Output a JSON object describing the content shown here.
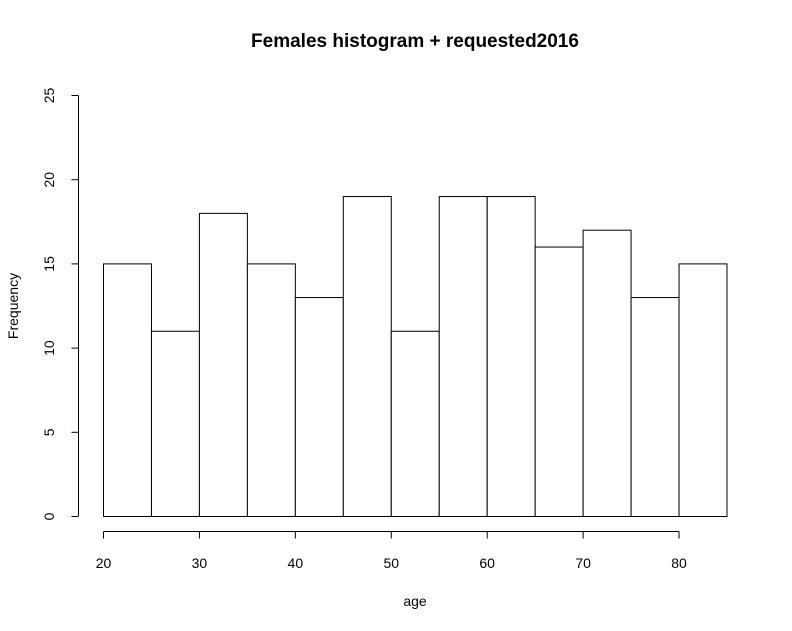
{
  "chart_data": {
    "type": "bar",
    "title": "Females histogram + requested2016",
    "xlabel": "age",
    "ylabel": "Frequency",
    "bins": [
      [
        20,
        25
      ],
      [
        25,
        30
      ],
      [
        30,
        35
      ],
      [
        35,
        40
      ],
      [
        40,
        45
      ],
      [
        45,
        50
      ],
      [
        50,
        55
      ],
      [
        55,
        60
      ],
      [
        60,
        65
      ],
      [
        65,
        70
      ],
      [
        70,
        75
      ],
      [
        75,
        80
      ],
      [
        80,
        85
      ]
    ],
    "values": [
      15,
      11,
      18,
      15,
      13,
      19,
      11,
      19,
      19,
      16,
      17,
      13,
      15
    ],
    "xlim": [
      20,
      85
    ],
    "ylim": [
      0,
      25
    ],
    "x_ticks": [
      20,
      30,
      40,
      50,
      60,
      70,
      80
    ],
    "y_ticks": [
      0,
      5,
      10,
      15,
      20,
      25
    ],
    "bar_fill": "#ffffff",
    "bar_stroke": "#000000",
    "grid": false
  }
}
